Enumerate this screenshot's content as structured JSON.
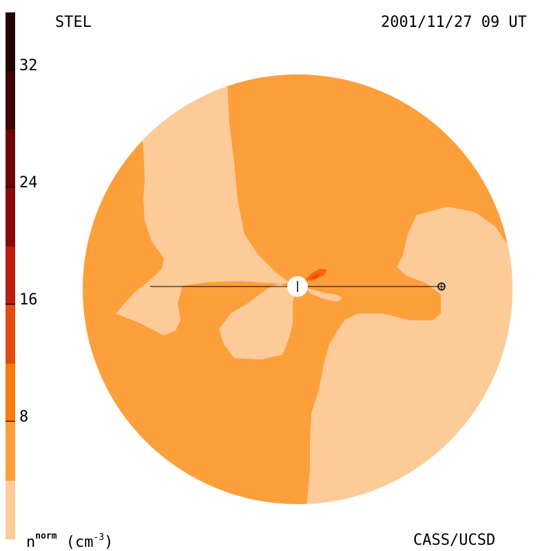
{
  "header": {
    "left_label": "STEL",
    "right_label": "2001/11/27 09 UT"
  },
  "footer": {
    "left_label_base": "n",
    "left_label_sup": "norm",
    "left_label_unit": " (cm",
    "left_label_unit_sup": "-3",
    "left_label_close": ")",
    "right_label": "CASS/UCSD"
  },
  "colorbar": {
    "ticks": [
      "8",
      "16",
      "24",
      "32"
    ],
    "colors": [
      "#fdcb98",
      "#fc9f3a",
      "#f97a0d",
      "#e14d0f",
      "#bd1c10",
      "#8a0a0a",
      "#560707",
      "#240202"
    ]
  },
  "map": {
    "background_color": "#fd9f3a",
    "light_region_color": "#fdcb98",
    "hot_spot_color": "#f9650d",
    "center_marker": "sun-marker",
    "earth_marker": "earth-marker"
  }
}
